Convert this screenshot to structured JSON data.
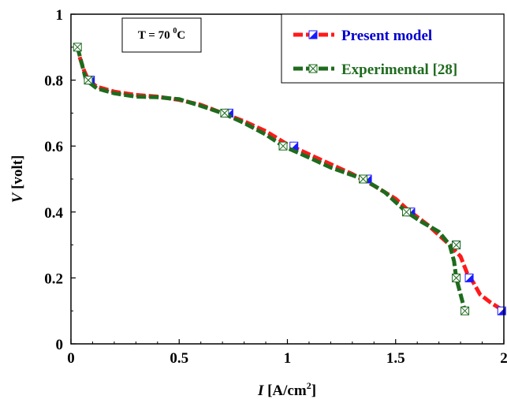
{
  "chart_data": {
    "type": "line",
    "xlabel_var": "I",
    "xlabel_unit_pre": " [A/cm",
    "xlabel_unit_sup": "2",
    "xlabel_unit_post": "]",
    "ylabel_var": "V",
    "ylabel_unit": " [volt]",
    "xlim": [
      0,
      2
    ],
    "ylim": [
      0,
      1
    ],
    "xticks": [
      "0",
      "0.5",
      "1",
      "1.5",
      "2"
    ],
    "yticks": [
      "0",
      "0.2",
      "0.4",
      "0.6",
      "0.8",
      "1"
    ],
    "grid": false,
    "condition_pre": "T = 70 ",
    "condition_sup": "0",
    "condition_post": "C",
    "legend_position": "top-right",
    "series": [
      {
        "name": "Present model",
        "color": "#ff1a1a",
        "marker_color": "#1a1aff",
        "text_color": "#0000cc",
        "curve": [
          [
            0.04,
            0.87
          ],
          [
            0.06,
            0.83
          ],
          [
            0.08,
            0.8
          ],
          [
            0.12,
            0.78
          ],
          [
            0.2,
            0.765
          ],
          [
            0.3,
            0.755
          ],
          [
            0.4,
            0.75
          ],
          [
            0.5,
            0.74
          ],
          [
            0.6,
            0.725
          ],
          [
            0.7,
            0.7
          ],
          [
            0.8,
            0.675
          ],
          [
            0.9,
            0.645
          ],
          [
            1.0,
            0.605
          ],
          [
            1.1,
            0.575
          ],
          [
            1.2,
            0.545
          ],
          [
            1.3,
            0.515
          ],
          [
            1.4,
            0.48
          ],
          [
            1.5,
            0.44
          ],
          [
            1.55,
            0.41
          ],
          [
            1.6,
            0.385
          ],
          [
            1.65,
            0.36
          ],
          [
            1.7,
            0.33
          ],
          [
            1.75,
            0.3
          ],
          [
            1.8,
            0.265
          ],
          [
            1.83,
            0.215
          ],
          [
            1.86,
            0.185
          ],
          [
            1.89,
            0.15
          ],
          [
            1.94,
            0.125
          ],
          [
            2.0,
            0.1
          ]
        ],
        "markers": [
          [
            0.09,
            0.8
          ],
          [
            0.73,
            0.7
          ],
          [
            1.03,
            0.6
          ],
          [
            1.37,
            0.5
          ],
          [
            1.57,
            0.4
          ],
          [
            1.78,
            0.3
          ],
          [
            1.84,
            0.2
          ],
          [
            1.99,
            0.1
          ]
        ]
      },
      {
        "name": "Experimental [28]",
        "color": "#1e6b1e",
        "marker_color": "#1e6b1e",
        "text_color": "#1e6b1e",
        "curve": [
          [
            0.03,
            0.9
          ],
          [
            0.05,
            0.85
          ],
          [
            0.07,
            0.8
          ],
          [
            0.12,
            0.775
          ],
          [
            0.2,
            0.76
          ],
          [
            0.3,
            0.75
          ],
          [
            0.4,
            0.748
          ],
          [
            0.5,
            0.742
          ],
          [
            0.6,
            0.722
          ],
          [
            0.7,
            0.7
          ],
          [
            0.8,
            0.67
          ],
          [
            0.9,
            0.635
          ],
          [
            0.98,
            0.6
          ],
          [
            1.1,
            0.565
          ],
          [
            1.2,
            0.535
          ],
          [
            1.35,
            0.5
          ],
          [
            1.45,
            0.46
          ],
          [
            1.55,
            0.4
          ],
          [
            1.62,
            0.37
          ],
          [
            1.7,
            0.34
          ],
          [
            1.75,
            0.3
          ],
          [
            1.77,
            0.25
          ],
          [
            1.78,
            0.2
          ],
          [
            1.8,
            0.15
          ],
          [
            1.82,
            0.1
          ]
        ],
        "markers": [
          [
            0.03,
            0.9
          ],
          [
            0.08,
            0.8
          ],
          [
            0.71,
            0.7
          ],
          [
            0.98,
            0.6
          ],
          [
            1.35,
            0.5
          ],
          [
            1.55,
            0.4
          ],
          [
            1.78,
            0.3
          ],
          [
            1.78,
            0.2
          ],
          [
            1.82,
            0.1
          ]
        ]
      }
    ]
  }
}
